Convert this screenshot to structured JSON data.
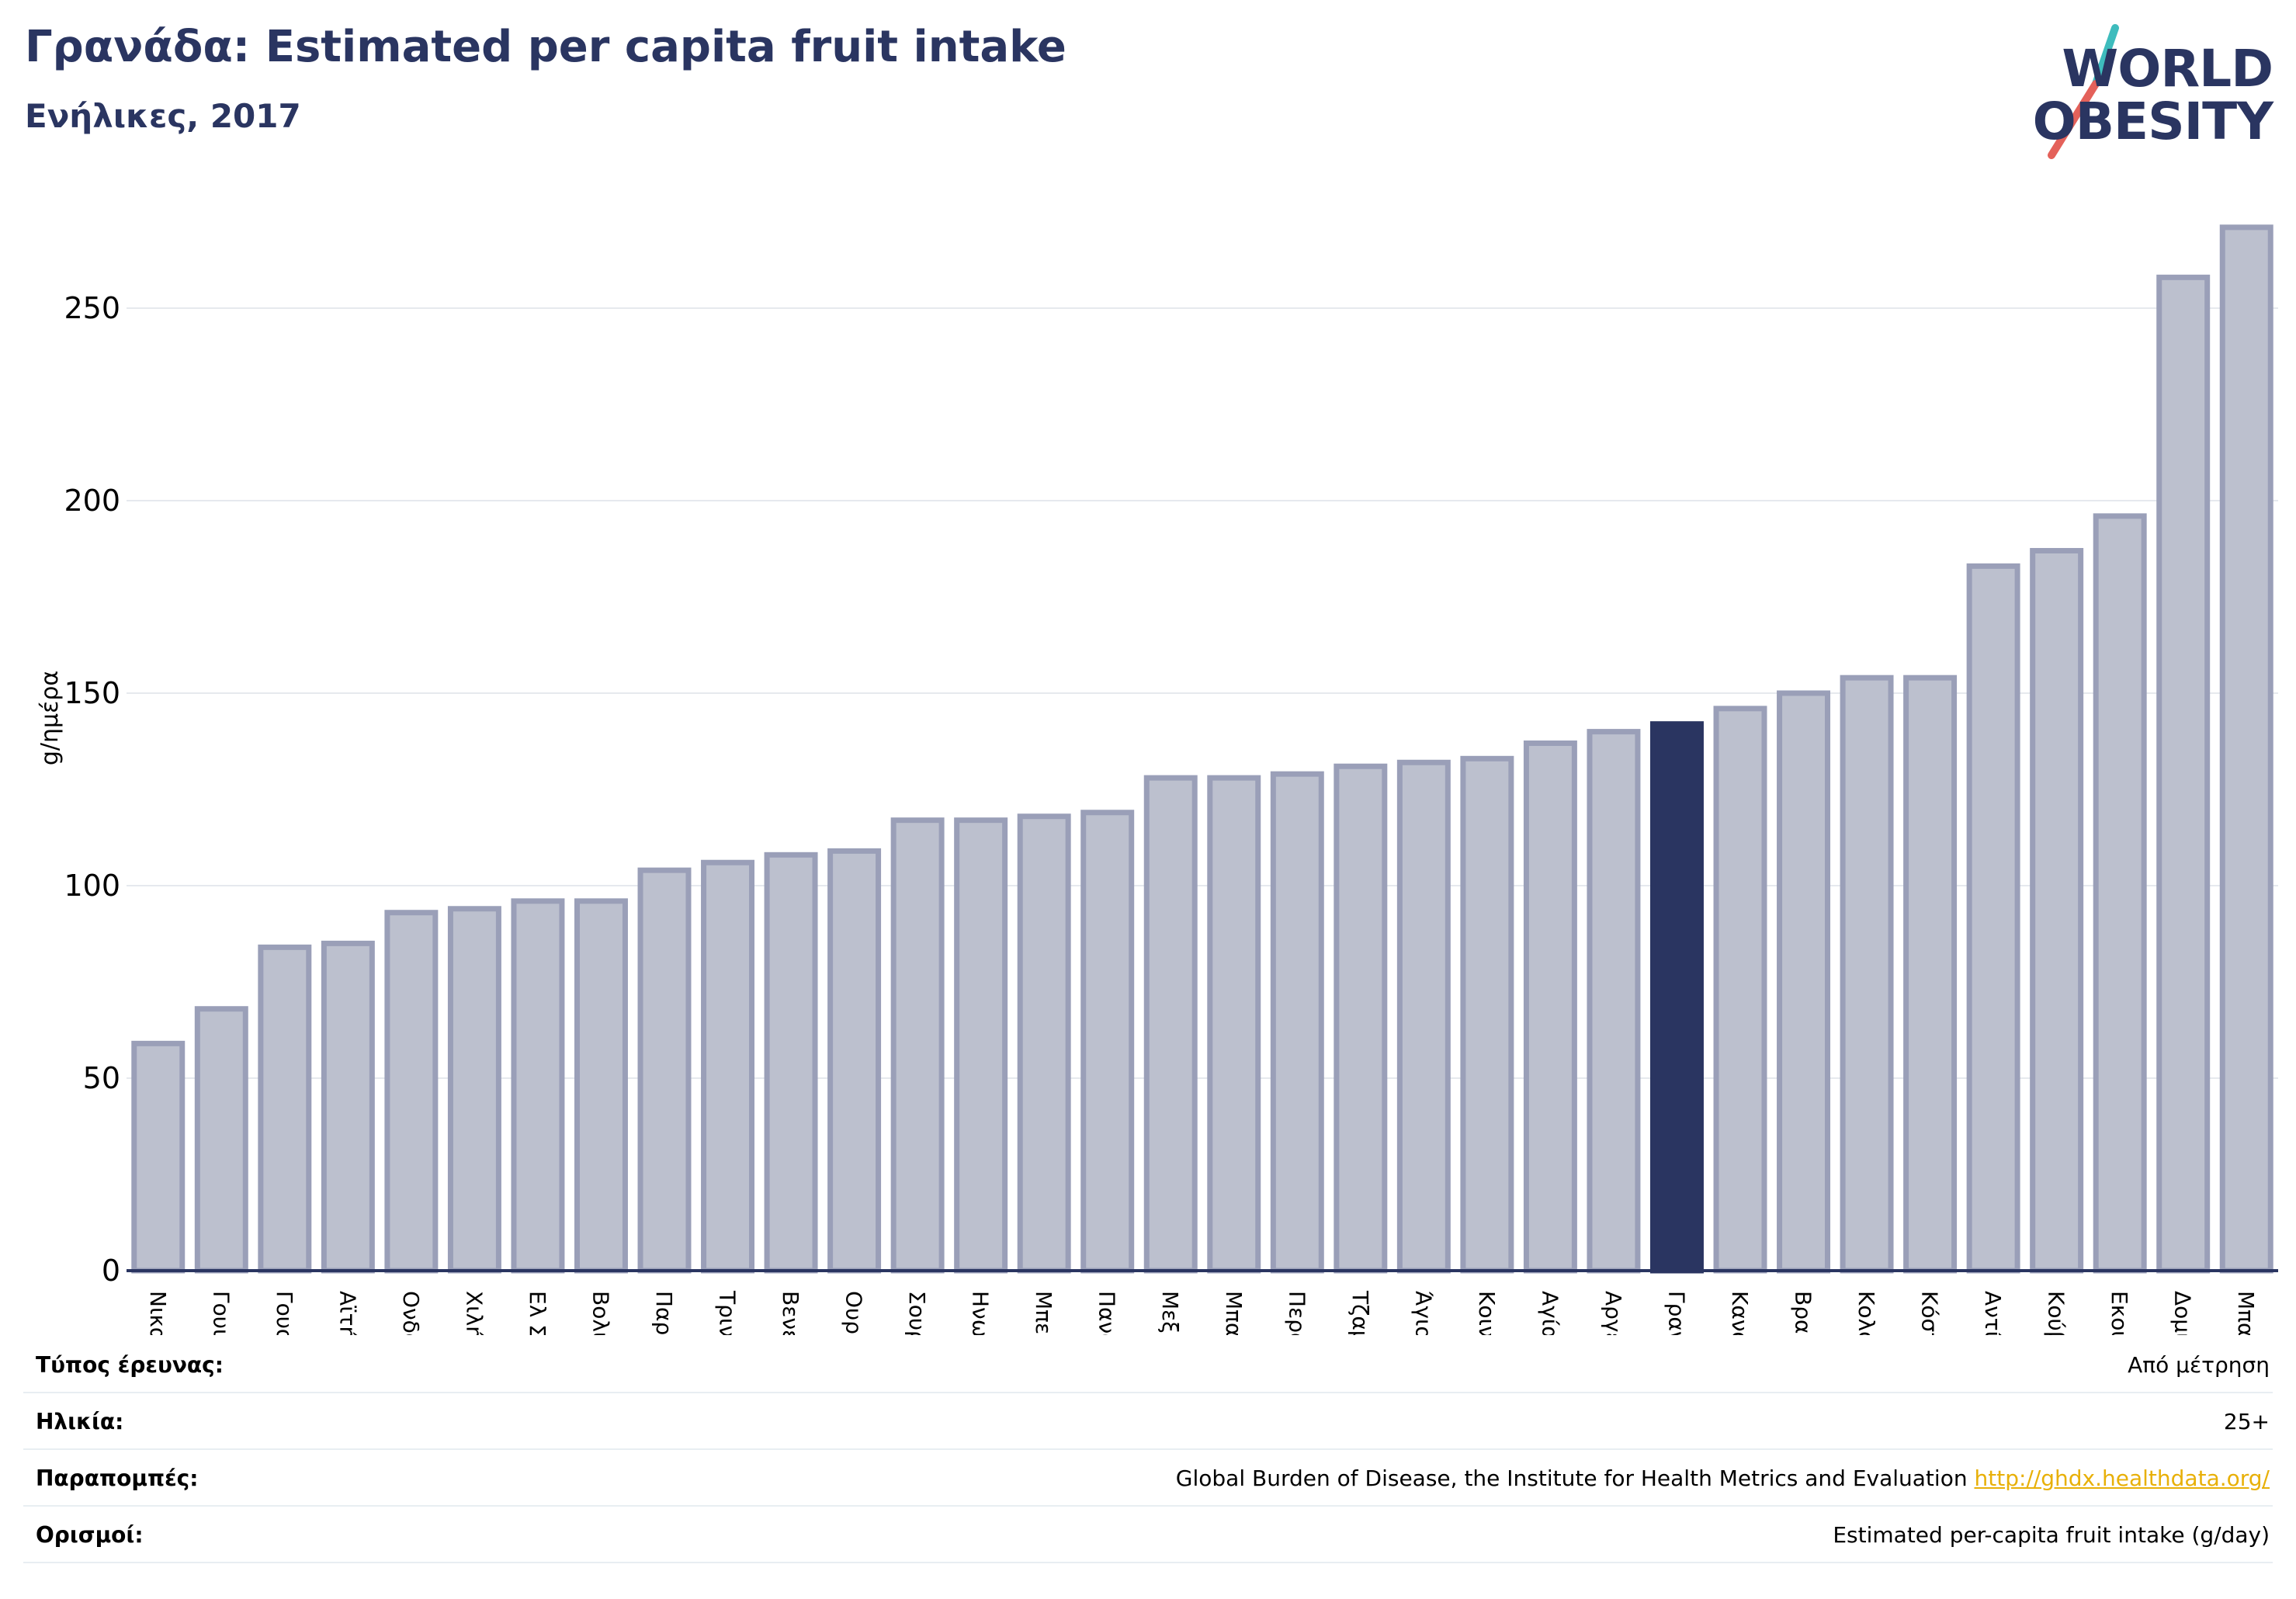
{
  "header": {
    "title": "Γρανάδα: Estimated per capita fruit intake",
    "subtitle": "Ενήλικες, 2017"
  },
  "logo": {
    "line1": "WORLD",
    "line2": "OBESITY",
    "slash_colors": [
      "#3ebcbd",
      "#e4615a"
    ]
  },
  "colors": {
    "bar": "#bcc0ce",
    "bar_border": "#9a9fb8",
    "highlight": "#2a3561",
    "grid": "#e6e9ee",
    "axis": "#2a3561"
  },
  "chart_data": {
    "type": "bar",
    "ylabel": "g/ημέρα",
    "ylim": [
      0,
      275
    ],
    "yticks": [
      0,
      50,
      100,
      150,
      200,
      250
    ],
    "grid": true,
    "highlight": "Γρανάδα",
    "categories": [
      "Νικαράγουα",
      "Γουιάνα",
      "Γουατεμάλα",
      "Αϊτή",
      "Ονδούρα",
      "Χιλή",
      "Ελ Σαλβαδόρ",
      "Βολιβία",
      "Παραγουάη",
      "Τρινιντάντ και Τομπάγκο",
      "Βενεζουέλα",
      "Ουρουγουάη",
      "Σουρινάμ",
      "Ηνωμένες Πολιτείες",
      "Μπελίζ",
      "Παναμάς",
      "Μεξικό",
      "Μπαρμπάντος",
      "Περού",
      "Τζαμάικα",
      "Άγιος Βικέντιος και Γρεναδίνες",
      "Κοινοπολιτεία της Δομινίκας",
      "Αγία Λουκία",
      "Αργεντινή",
      "Γρανάδα",
      "Καναδάς",
      "Βραζιλία",
      "Κολομβία",
      "Κόστα Ρίκα",
      "Αντίγκουα και Μπαρμπούντα",
      "Κούβα",
      "Εκουαδόρ",
      "Δομινικανή Δημοκρατία",
      "Μπαχάμες"
    ],
    "values": [
      59,
      68,
      84,
      85,
      93,
      94,
      96,
      96,
      104,
      106,
      108,
      109,
      117,
      117,
      118,
      119,
      128,
      128,
      129,
      131,
      132,
      133,
      137,
      140,
      142,
      146,
      150,
      154,
      154,
      183,
      187,
      196,
      258,
      271
    ]
  },
  "info_table": [
    {
      "label": "Τύπος έρευνας:",
      "value": "Από μέτρηση"
    },
    {
      "label": "Ηλικία:",
      "value": "25+"
    },
    {
      "label": "Παραπομπές:",
      "value": "Global Burden of Disease, the Institute for Health Metrics and Evaluation",
      "link": "http://ghdx.healthdata.org/"
    },
    {
      "label": "Ορισμοί:",
      "value": "Estimated per-capita fruit intake (g/day)"
    }
  ]
}
